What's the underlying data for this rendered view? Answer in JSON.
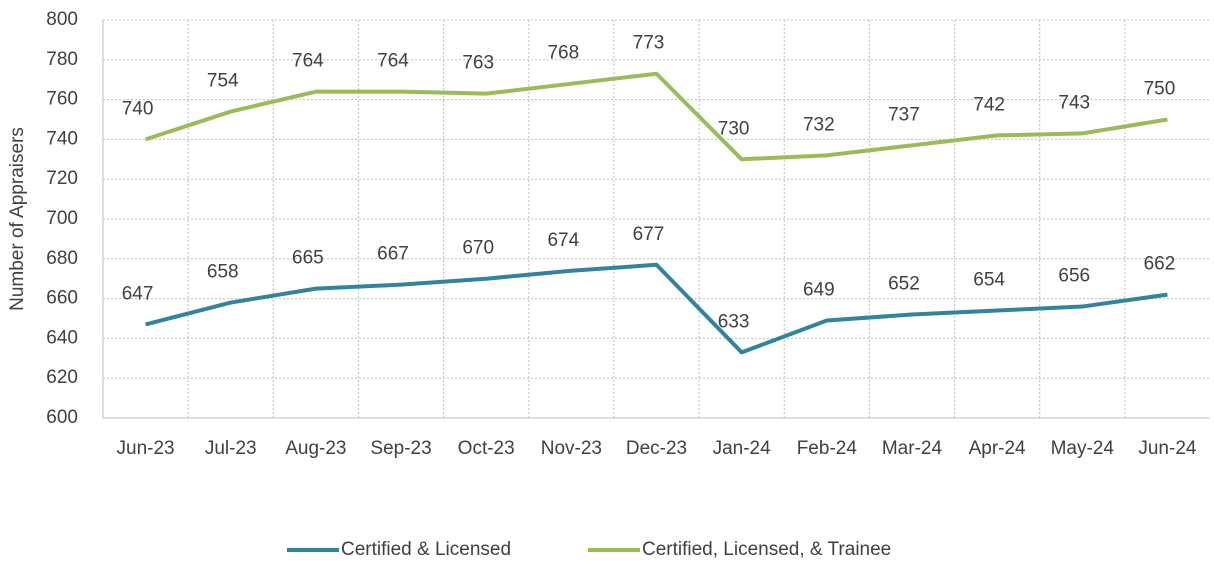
{
  "chart_data": {
    "type": "line",
    "y_label": "Number of Appraisers",
    "categories": [
      "Jun-23",
      "Jul-23",
      "Aug-23",
      "Sep-23",
      "Oct-23",
      "Nov-23",
      "Dec-23",
      "Jan-24",
      "Feb-24",
      "Mar-24",
      "Apr-24",
      "May-24",
      "Jun-24"
    ],
    "series": [
      {
        "name": "Certified & Licensed",
        "color": "#31849b",
        "values": [
          647,
          658,
          665,
          667,
          670,
          674,
          677,
          633,
          649,
          652,
          654,
          656,
          662
        ]
      },
      {
        "name": "Certified, Licensed, & Trainee",
        "color": "#9bbb59",
        "values": [
          740,
          754,
          764,
          764,
          763,
          768,
          773,
          730,
          732,
          737,
          742,
          743,
          750
        ]
      }
    ],
    "ylim": [
      600,
      800
    ],
    "yticks": [
      600,
      620,
      640,
      660,
      680,
      700,
      720,
      740,
      760,
      780,
      800
    ],
    "grid": true,
    "legend": "bottom",
    "data_labels": true
  }
}
